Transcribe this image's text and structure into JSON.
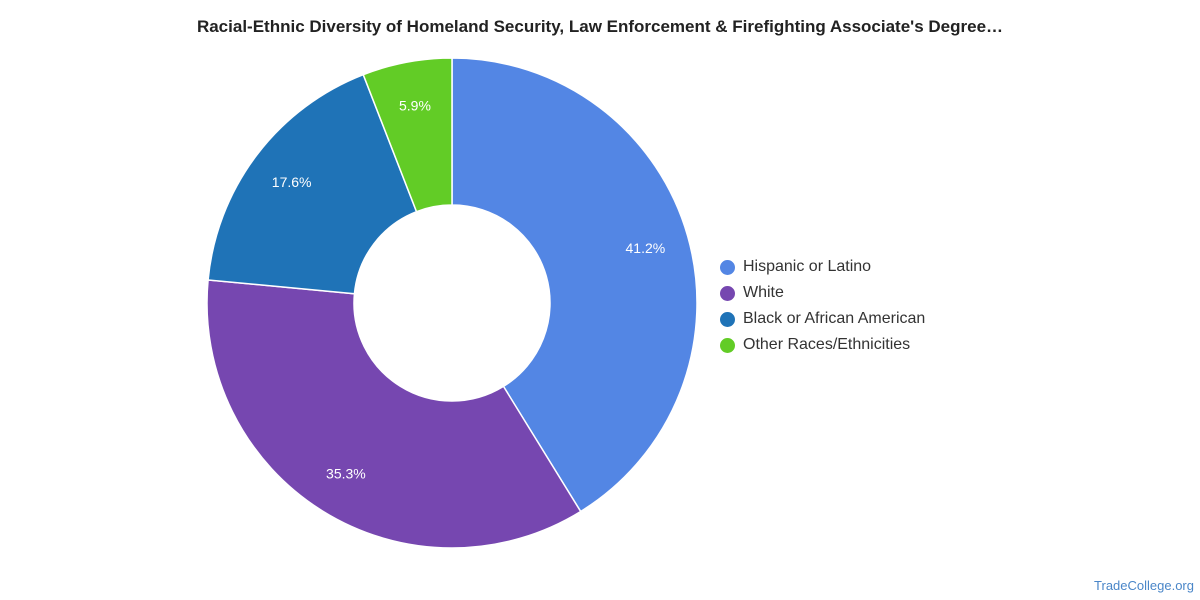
{
  "chart_data": {
    "type": "pie",
    "title": "Racial-Ethnic Diversity of Homeland Security, Law Enforcement & Firefighting Associate's Degree…",
    "donut": true,
    "legend_position": "right",
    "series": [
      {
        "name": "Hispanic or Latino",
        "value": 41.2,
        "label": "41.2%",
        "color": "#5386e4"
      },
      {
        "name": "White",
        "value": 35.3,
        "label": "35.3%",
        "color": "#7647b0"
      },
      {
        "name": "Black or African American",
        "value": 17.6,
        "label": "17.6%",
        "color": "#1f73b7"
      },
      {
        "name": "Other Races/Ethnicities",
        "value": 5.9,
        "label": "5.9%",
        "color": "#62cc26"
      }
    ]
  },
  "footer": {
    "source": "TradeCollege.org"
  }
}
